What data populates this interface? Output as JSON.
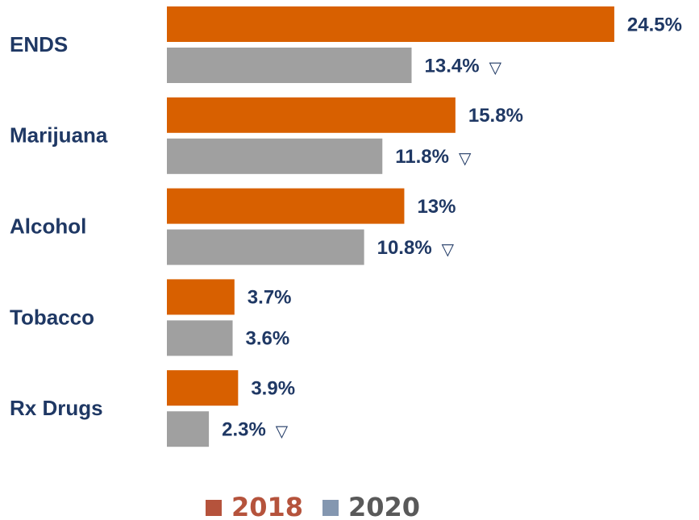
{
  "chart_data": {
    "type": "bar",
    "orientation": "horizontal",
    "categories": [
      "ENDS",
      "Marijuana",
      "Alcohol",
      "Tobacco",
      "Rx Drugs"
    ],
    "series": [
      {
        "name": "2018",
        "color": "#d86000",
        "legend_color": "#b5533c",
        "values": [
          24.5,
          15.8,
          13,
          3.7,
          3.9
        ],
        "value_labels": [
          "24.5%",
          "15.8%",
          "13%",
          "3.7%",
          "3.9%"
        ]
      },
      {
        "name": "2020",
        "color": "#a0a0a0",
        "legend_color": "#8497b0",
        "values": [
          13.4,
          11.8,
          10.8,
          3.6,
          2.3
        ],
        "value_labels": [
          "13.4%",
          "11.8%",
          "10.8%",
          "3.6%",
          "2.3%"
        ],
        "annotations": [
          "▽",
          "▽",
          "▽",
          null,
          "▽"
        ]
      }
    ]
  }
}
